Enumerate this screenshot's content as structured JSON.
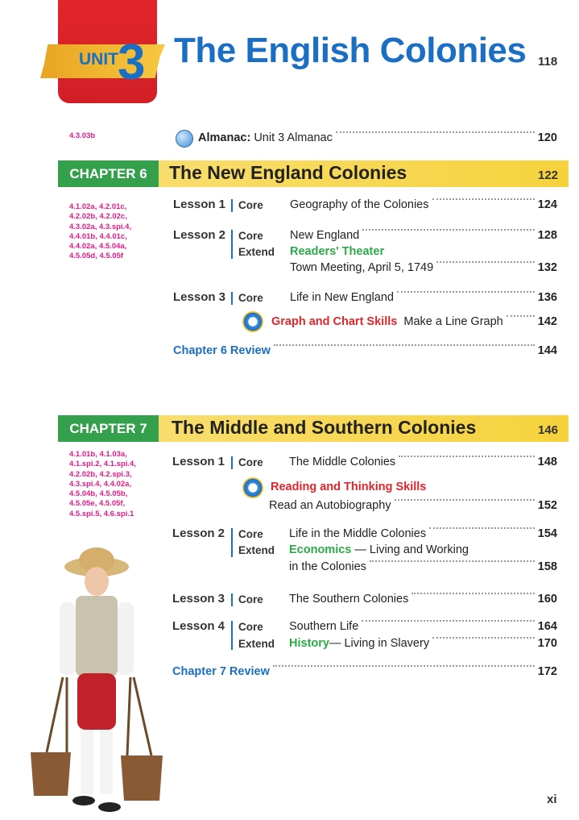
{
  "unit": {
    "label": "UNIT",
    "number": "3",
    "title": "The English Colonies",
    "page": "118"
  },
  "almanac": {
    "standard": "4.3.03b",
    "label": "Almanac:",
    "title": "Unit 3 Almanac",
    "page": "120"
  },
  "chapter6": {
    "label": "CHAPTER 6",
    "title": "The New England Colonies",
    "page": "122",
    "standards": [
      "4.1.02a, 4.2.01c,",
      "4.2.02b, 4.2.02c,",
      "4.3.02a, 4.3.spi.4,",
      "4.4.01b, 4.4.01c,",
      "4.4.02a, 4.5.04a,",
      "4.5.05d, 4.5.05f"
    ],
    "lesson1": {
      "label": "Lesson 1",
      "core": "Core",
      "title": "Geography of the Colonies",
      "page": "124"
    },
    "lesson2": {
      "label": "Lesson 2",
      "core": "Core",
      "title": "New England",
      "page": "128",
      "extend": "Extend",
      "extend_title": "Readers' Theater",
      "extend_sub": "Town Meeting, April 5, 1749",
      "extend_page": "132"
    },
    "lesson3": {
      "label": "Lesson 3",
      "core": "Core",
      "title": "Life in New England",
      "page": "136",
      "skill": "Graph and Chart Skills",
      "skill_title": "Make a Line Graph",
      "skill_page": "142"
    },
    "review": {
      "label": "Chapter 6 Review",
      "page": "144"
    }
  },
  "chapter7": {
    "label": "CHAPTER 7",
    "title": "The Middle and Southern Colonies",
    "page": "146",
    "standards": [
      "4.1.01b, 4.1.03a,",
      "4.1.spi.2, 4.1.spi.4,",
      "4.2.02b, 4.2.spi.3,",
      "4.3.spi.4, 4.4.02a,",
      "4.5.04b, 4.5.05b,",
      "4.5.05e, 4.5.05f,",
      "4.5.spi.5, 4.6.spi.1"
    ],
    "lesson1": {
      "label": "Lesson 1",
      "core": "Core",
      "title": "The Middle Colonies",
      "page": "148",
      "skill": "Reading and Thinking Skills",
      "skill_title": "Read an Autobiography",
      "skill_page": "152"
    },
    "lesson2": {
      "label": "Lesson 2",
      "core": "Core",
      "title": "Life in the Middle Colonies",
      "page": "154",
      "extend": "Extend",
      "extend_title": "Economics",
      "extend_rest": " — Living and Working",
      "extend_sub": "in the Colonies",
      "extend_page": "158"
    },
    "lesson3": {
      "label": "Lesson 3",
      "core": "Core",
      "title": "The Southern Colonies",
      "page": "160"
    },
    "lesson4": {
      "label": "Lesson 4",
      "core": "Core",
      "title": "Southern Life",
      "page": "164",
      "extend": "Extend",
      "extend_title": "History",
      "extend_rest": " — Living in Slavery",
      "extend_page": "170"
    },
    "review": {
      "label": "Chapter 7 Review",
      "page": "172"
    }
  },
  "folio": "xi",
  "colors": {
    "blue": "#1a6fc4",
    "green": "#35a04b",
    "red": "#e2252b",
    "magenta": "#e6198a",
    "yellow": "#f6d23c"
  }
}
